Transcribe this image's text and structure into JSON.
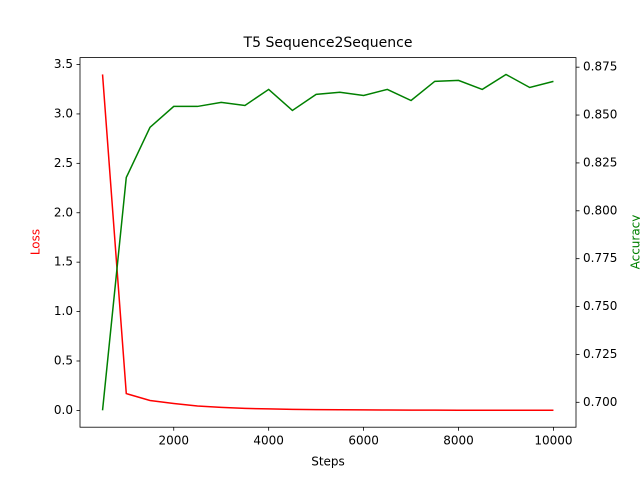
{
  "chart_data": {
    "type": "line",
    "title": "T5 Sequence2Sequence",
    "x_label": "Steps",
    "y_label": "Loss",
    "y2_label": "Accuracy",
    "x": [
      500,
      1000,
      1500,
      2000,
      2500,
      3000,
      3500,
      4000,
      4500,
      5000,
      5500,
      6000,
      6500,
      7000,
      7500,
      8000,
      8500,
      9000,
      9500,
      10000
    ],
    "series": [
      {
        "name": "Loss",
        "color": "#ff0000",
        "values": [
          3.4,
          0.17,
          0.1,
          0.07,
          0.045,
          0.03,
          0.02,
          0.015,
          0.01,
          0.008,
          0.006,
          0.005,
          0.004,
          0.003,
          0.0025,
          0.002,
          0.0018,
          0.0015,
          0.0012,
          0.001
        ]
      },
      {
        "name": "Accuracy",
        "color": "#008000",
        "axis": "y2",
        "values": [
          0.6958,
          0.8174,
          0.8436,
          0.8545,
          0.8545,
          0.8566,
          0.855,
          0.8634,
          0.8524,
          0.8608,
          0.8619,
          0.8602,
          0.8634,
          0.8576,
          0.8676,
          0.8681,
          0.8634,
          0.8712,
          0.8644,
          0.8676
        ]
      }
    ],
    "xlim": [
      25,
      10475
    ],
    "xticks": [
      2000,
      4000,
      6000,
      8000,
      10000
    ],
    "ylim": [
      -0.17,
      3.57
    ],
    "yticks": [
      {
        "value": 0,
        "label": "0.0"
      },
      0.5,
      {
        "value": 1,
        "label": "1.0"
      },
      1.5,
      {
        "value": 2,
        "label": "2.0"
      },
      2.5,
      {
        "value": 3,
        "label": "3.0"
      },
      3.5
    ],
    "y2lim": [
      0.687,
      0.88
    ],
    "y2ticks": [
      {
        "value": 0.7,
        "label": "0.700"
      },
      0.725,
      {
        "value": 0.75,
        "label": "0.750"
      },
      0.775,
      {
        "value": 0.8,
        "label": "0.800"
      },
      0.825,
      {
        "value": 0.85,
        "label": "0.850"
      },
      0.875
    ]
  }
}
